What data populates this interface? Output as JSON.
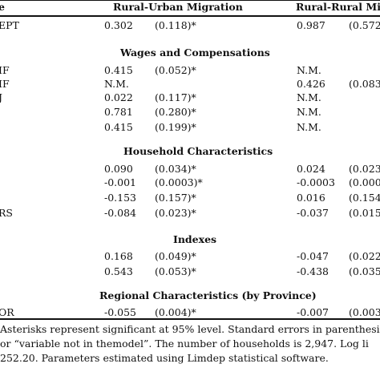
{
  "header": {
    "variable_col": "e",
    "group1": "Rural-Urban Migration",
    "group2": "Rural-Rural Mi"
  },
  "intercept_row": {
    "label": "EPT",
    "v1": "0.302",
    "s1": "(0.118)*",
    "v2": "0.987",
    "s2": "(0.572"
  },
  "sections": {
    "wages": "Wages and Compensations",
    "household": "Household Characteristics",
    "indexes": "Indexes",
    "regional": "Regional Characteristics (by Province)"
  },
  "wages_rows": [
    {
      "label": "IF",
      "v1": "0.415",
      "s1": "(0.052)*",
      "v2": "N.M.",
      "s2": ""
    },
    {
      "label": "IF",
      "v1": "N.M.",
      "s1": "",
      "v2": "0.426",
      "s2": "(0.083"
    },
    {
      "label": "J",
      "v1": "0.022",
      "s1": "(0.117)*",
      "v2": "N.M.",
      "s2": ""
    },
    {
      "label": "",
      "v1": "0.781",
      "s1": "(0.280)*",
      "v2": "N.M.",
      "s2": ""
    },
    {
      "label": "",
      "v1": "0.415",
      "s1": "(0.199)*",
      "v2": "N.M.",
      "s2": ""
    }
  ],
  "household_rows": [
    {
      "label": "",
      "v1": "0.090",
      "s1": "(0.034)*",
      "v2": "0.024",
      "s2": "(0.023"
    },
    {
      "label": "",
      "v1": "-0.001",
      "s1": "(0.0003)*",
      "v2": "-0.0003",
      "s2": "(0.000"
    },
    {
      "label": "",
      "v1": "-0.153",
      "s1": "(0.157)*",
      "v2": "0.016",
      "s2": "(0.154"
    },
    {
      "label": "RS",
      "v1": "-0.084",
      "s1": "(0.023)*",
      "v2": "-0.037",
      "s2": "(0.015"
    }
  ],
  "index_rows": [
    {
      "label": "",
      "v1": "0.168",
      "s1": "(0.049)*",
      "v2": "-0.047",
      "s2": "(0.022"
    },
    {
      "label": "",
      "v1": "0.543",
      "s1": "(0.053)*",
      "v2": "-0.438",
      "s2": "(0.035"
    }
  ],
  "regional_rows": [
    {
      "label": "OR",
      "v1": "-0.055",
      "s1": "(0.004)*",
      "v2": "-0.007",
      "s2": "(0.003"
    }
  ],
  "footnote": {
    "line1": "Asterisks represent significant at 95% level.  Standard errors in parenthesi",
    "line2": "or “variable not in themodel”.  The number of households is 2,947.  Log li",
    "line3": "252.20.  Parameters estimated using Limdep statistical software."
  }
}
